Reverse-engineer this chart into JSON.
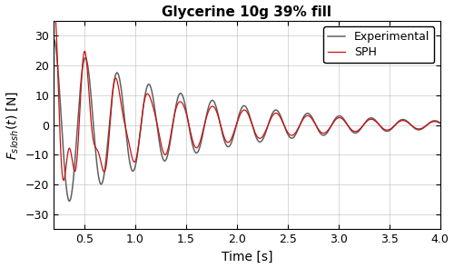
{
  "title": "Glycerine 10g 39% fill",
  "xlabel": "Time [s]",
  "ylabel": "$F_{slosh}(t)$ [N]",
  "xlim": [
    0.2,
    4.0
  ],
  "ylim": [
    -35,
    35
  ],
  "xticks": [
    0.5,
    1.0,
    1.5,
    2.0,
    2.5,
    3.0,
    3.5,
    4.0
  ],
  "yticks": [
    -30,
    -20,
    -10,
    0,
    10,
    20,
    30
  ],
  "exp_color": "#606060",
  "sph_color": "#cc1010",
  "exp_linewidth": 1.1,
  "sph_linewidth": 0.9,
  "legend_labels": [
    "Experimental",
    "SPH"
  ],
  "title_fontsize": 11,
  "label_fontsize": 10,
  "tick_fontsize": 9,
  "t_start": 0.2,
  "t_end": 4.0,
  "n_points": 8000,
  "exp_amplitude": 29.0,
  "exp_decay": 0.8,
  "exp_frequency": 3.2,
  "exp_phase": 1.57,
  "sph_base_amplitude": 22.0,
  "sph_base_decay": 0.78,
  "sph_base_frequency": 3.2,
  "sph_base_phase": 1.57,
  "sph_hf_amplitude": 18.0,
  "sph_hf_decay": 2.8,
  "sph_hf_frequency": 6.8,
  "sph_hf_phase": 1.2,
  "sph_peak_amplitude": 14.0,
  "sph_peak_decay": 4.5,
  "sph_peak_frequency": 3.5,
  "sph_peak_phase": -0.5
}
